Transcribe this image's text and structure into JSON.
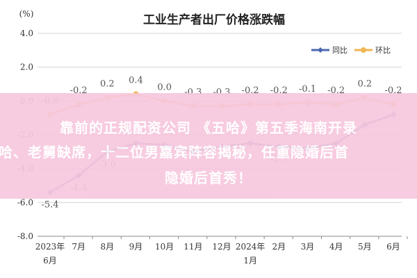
{
  "chart_data": {
    "type": "line",
    "title": "工业生产者出厂价格涨跌幅",
    "unit_label": "(%)",
    "categories": [
      "2023年6月",
      "7月",
      "8月",
      "9月",
      "10月",
      "11月",
      "12月",
      "2024年1月",
      "2月",
      "3月",
      "4月",
      "5月",
      "6月"
    ],
    "tick_labels": [
      [
        "2023年",
        "6月"
      ],
      [
        "7月"
      ],
      [
        "8月"
      ],
      [
        "9月"
      ],
      [
        "10月"
      ],
      [
        "11月"
      ],
      [
        "12月"
      ],
      [
        "2024年",
        "1月"
      ],
      [
        "2月"
      ],
      [
        "3月"
      ],
      [
        "4月"
      ],
      [
        "5月"
      ],
      [
        "6月"
      ]
    ],
    "ylim": [
      -8.0,
      4.0
    ],
    "yticks": [
      "4.0",
      "2.0",
      "0.0",
      "-2.0",
      "-4.0",
      "-6.0",
      "-8.0"
    ],
    "grid": true,
    "legend_position": "top-right",
    "series": [
      {
        "name": "同比",
        "color": "#4a67b0",
        "values": [
          -5.4,
          -4.4,
          -3.0,
          -2.5,
          -2.6,
          -3.0,
          -2.7,
          -2.5,
          -2.7,
          -2.8,
          -2.5,
          -1.4,
          -0.8
        ],
        "labels": [
          "-5.4",
          "-4.4",
          "-3.0",
          "",
          "",
          "",
          "",
          "",
          "-2.7",
          "",
          "",
          "",
          ""
        ]
      },
      {
        "name": "环比",
        "color": "#f0b652",
        "values": [
          -0.8,
          -0.2,
          0.2,
          0.4,
          0.0,
          -0.3,
          -0.3,
          -0.2,
          -0.2,
          -0.1,
          -0.2,
          0.2,
          -0.2
        ],
        "labels": [
          "-0.8",
          "-0.2",
          "0.2",
          "0.4",
          "0.0",
          "-0.3",
          "-0.3",
          "-0.2",
          "-0.2",
          "-0.1",
          "-0.2",
          "0.2",
          "-0.2"
        ]
      }
    ]
  },
  "overlay": {
    "line1": "靠前的正规配资公司 《五哈》第五季海南开录",
    "line2": "哈、老舅缺席，十二位男嘉宾阵容揭秘，任重隐婚后首",
    "line3": "隐婚后首秀！"
  }
}
